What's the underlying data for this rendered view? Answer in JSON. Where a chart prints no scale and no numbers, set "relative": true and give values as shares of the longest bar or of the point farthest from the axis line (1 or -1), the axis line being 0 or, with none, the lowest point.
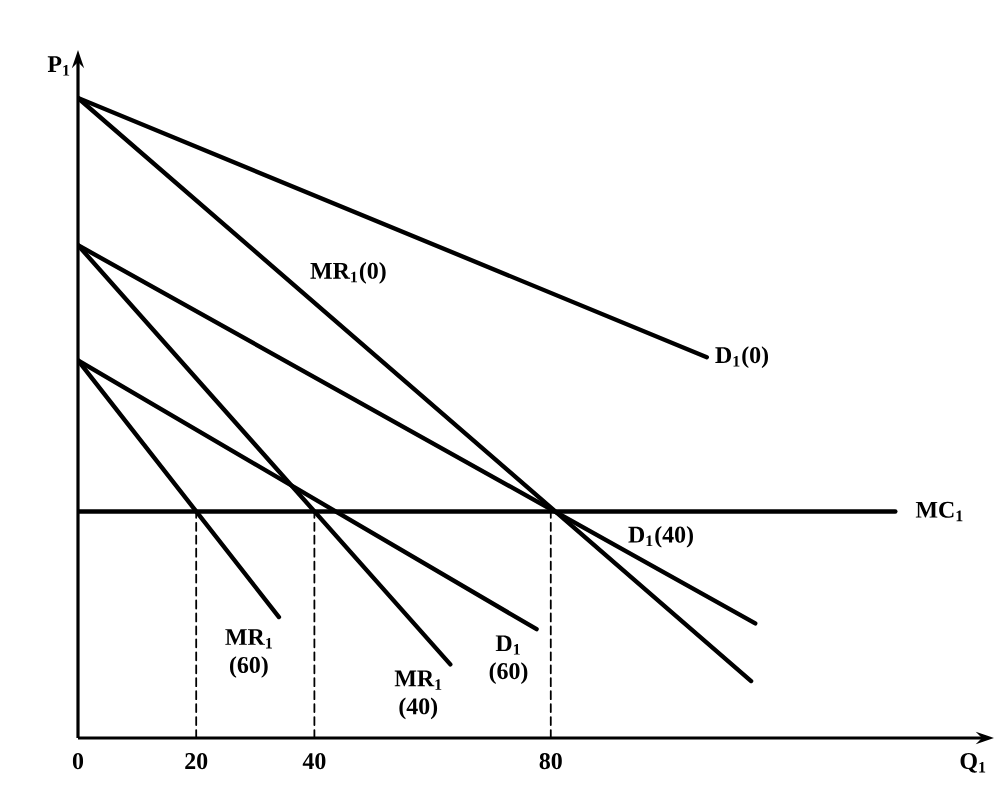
{
  "chart_data": {
    "type": "line",
    "relative": true,
    "xlabel": "Q$_{1}$",
    "ylabel": "P$_{1}$",
    "xlim": [
      0,
      155
    ],
    "xticks": [
      0,
      20,
      40,
      80
    ],
    "tick_labels": "x",
    "grid": false,
    "marker": "none",
    "series": [
      {
        "name": "D$_{1}$(0)",
        "color": "#000000",
        "x": [
          0,
          106.4
        ],
        "values": [
          1,
          0.595
        ]
      },
      {
        "name": "MR$_{1}$(0)",
        "color": "#000000",
        "x": [
          0,
          113.9
        ],
        "values": [
          1,
          0.089
        ]
      },
      {
        "name": "D$_{1}$(40)",
        "color": "#000000",
        "x": [
          0,
          114.6
        ],
        "values": [
          0.77,
          0.179
        ]
      },
      {
        "name": "MR$_{1}$ (40)",
        "color": "#000000",
        "x": [
          0,
          63
        ],
        "values": [
          0.77,
          0.115
        ]
      },
      {
        "name": "D$_{1}$ (60)",
        "color": "#000000",
        "x": [
          0,
          77.6
        ],
        "values": [
          0.59,
          0.17
        ]
      },
      {
        "name": "MR$_{1}$ (60)",
        "color": "#000000",
        "x": [
          0,
          34
        ],
        "values": [
          0.59,
          0.189
        ]
      },
      {
        "name": "MC$_{1}$",
        "color": "#000000",
        "x": [
          0,
          138.3
        ],
        "values": [
          0.354,
          0.354
        ]
      },
      {
        "color": "#000000",
        "line_style": "dashed",
        "x": [
          20,
          20
        ],
        "values": [
          0,
          0.354
        ]
      },
      {
        "color": "#000000",
        "line_style": "dashed",
        "x": [
          40,
          40
        ],
        "values": [
          0,
          0.354
        ]
      },
      {
        "color": "#000000",
        "line_style": "dashed",
        "x": [
          80,
          80
        ],
        "values": [
          0,
          0.354
        ]
      }
    ]
  }
}
